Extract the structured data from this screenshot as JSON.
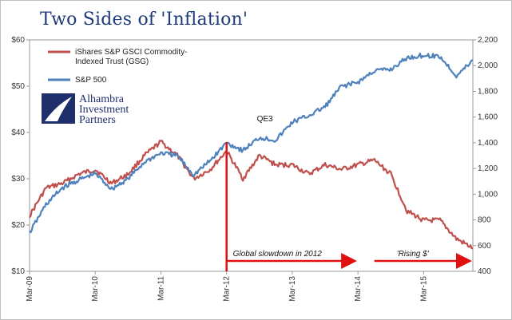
{
  "title": "Two Sides of 'Inflation'",
  "logo": {
    "lines": [
      "Alhambra",
      "Investment",
      "Partners"
    ]
  },
  "colors": {
    "gsg": "#c0504d",
    "sp500": "#4f81bd",
    "annotation": "#e01010",
    "title": "#1f3a7a"
  },
  "chart_data": {
    "type": "line",
    "x_ticks": [
      "Mar-09",
      "Mar-10",
      "Mar-11",
      "Mar-12",
      "Mar-13",
      "Mar-14",
      "Mar-15"
    ],
    "x_range": [
      "2009-03",
      "2015-12"
    ],
    "y_left": {
      "ticks": [
        "$10",
        "$20",
        "$30",
        "$40",
        "$50",
        "$60"
      ],
      "min": 10,
      "max": 60
    },
    "y_right": {
      "ticks": [
        "400",
        "600",
        "800",
        "1,000",
        "1,200",
        "1,400",
        "1,600",
        "1,800",
        "2,000",
        "2,200"
      ],
      "min": 400,
      "max": 2200
    },
    "legend": {
      "placement": "top-left"
    },
    "series": [
      {
        "name": "iShares S&P GSCI Commodity-Indexed Trust (GSG)",
        "axis": "left",
        "points": [
          [
            "2009-03",
            22
          ],
          [
            "2009-06",
            28
          ],
          [
            "2009-09",
            29
          ],
          [
            "2009-12",
            31
          ],
          [
            "2010-03",
            32
          ],
          [
            "2010-06",
            29
          ],
          [
            "2010-09",
            31
          ],
          [
            "2010-12",
            35
          ],
          [
            "2011-03",
            38
          ],
          [
            "2011-06",
            35
          ],
          [
            "2011-09",
            30
          ],
          [
            "2011-12",
            32
          ],
          [
            "2012-03",
            36
          ],
          [
            "2012-06",
            30
          ],
          [
            "2012-09",
            35
          ],
          [
            "2012-12",
            33
          ],
          [
            "2013-03",
            33
          ],
          [
            "2013-06",
            31
          ],
          [
            "2013-09",
            33
          ],
          [
            "2013-12",
            32
          ],
          [
            "2014-03",
            33
          ],
          [
            "2014-06",
            34
          ],
          [
            "2014-09",
            31
          ],
          [
            "2014-12",
            23
          ],
          [
            "2015-03",
            21
          ],
          [
            "2015-06",
            21
          ],
          [
            "2015-09",
            17
          ],
          [
            "2015-12",
            15
          ]
        ]
      },
      {
        "name": "S&P 500",
        "axis": "right",
        "points": [
          [
            "2009-03",
            700
          ],
          [
            "2009-06",
            920
          ],
          [
            "2009-09",
            1050
          ],
          [
            "2009-12",
            1110
          ],
          [
            "2010-03",
            1160
          ],
          [
            "2010-06",
            1040
          ],
          [
            "2010-09",
            1120
          ],
          [
            "2010-12",
            1250
          ],
          [
            "2011-03",
            1320
          ],
          [
            "2011-06",
            1300
          ],
          [
            "2011-09",
            1150
          ],
          [
            "2011-12",
            1260
          ],
          [
            "2012-03",
            1400
          ],
          [
            "2012-06",
            1340
          ],
          [
            "2012-09",
            1440
          ],
          [
            "2012-12",
            1420
          ],
          [
            "2013-03",
            1560
          ],
          [
            "2013-06",
            1610
          ],
          [
            "2013-09",
            1680
          ],
          [
            "2013-12",
            1840
          ],
          [
            "2014-03",
            1870
          ],
          [
            "2014-06",
            1960
          ],
          [
            "2014-09",
            1970
          ],
          [
            "2014-12",
            2060
          ],
          [
            "2015-03",
            2080
          ],
          [
            "2015-06",
            2070
          ],
          [
            "2015-09",
            1920
          ],
          [
            "2015-12",
            2040
          ]
        ]
      }
    ],
    "annotations": [
      {
        "text": "QE3",
        "x": "2012-10",
        "y_right": 1480
      },
      {
        "text": "Global slowdown in 2012",
        "x_start": "2012-03",
        "x_end": "2014-03"
      },
      {
        "text": "'Rising $'",
        "x_start": "2014-06",
        "x_end": "2015-12"
      }
    ]
  }
}
